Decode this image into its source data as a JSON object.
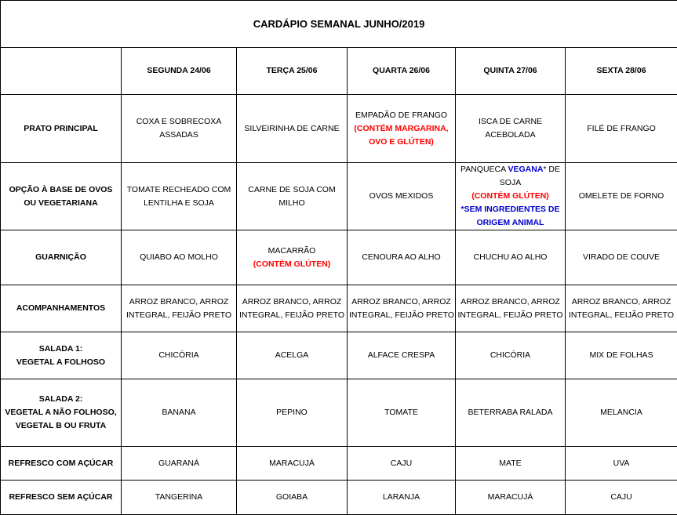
{
  "title": "CARDÁPIO SEMANAL JUNHO/2019",
  "days": [
    "SEGUNDA   24/06",
    "TERÇA 25/06",
    "QUARTA 26/06",
    "QUINTA 27/06",
    "SEXTA 28/06"
  ],
  "colors": {
    "allergen": "#ff0000",
    "vegan_note": "#0000cc"
  },
  "rows": [
    {
      "label": [
        "PRATO PRINCIPAL"
      ],
      "cells": [
        [
          [
            {
              "t": "COXA E SOBRECOXA"
            }
          ],
          [
            {
              "t": "ASSADAS"
            }
          ]
        ],
        [
          [
            {
              "t": "SILVEIRINHA DE CARNE"
            }
          ]
        ],
        [
          [
            {
              "t": "EMPADÃO DE FRANGO"
            }
          ],
          [
            {
              "t": "(CONTÉM MARGARINA,",
              "c": "red"
            }
          ],
          [
            {
              "t": "OVO E GLÚTEN)",
              "c": "red"
            }
          ]
        ],
        [
          [
            {
              "t": "ISCA DE CARNE"
            }
          ],
          [
            {
              "t": "ACEBOLADA"
            }
          ]
        ],
        [
          [
            {
              "t": "FILÉ DE FRANGO"
            }
          ]
        ]
      ]
    },
    {
      "label": [
        "OPÇÃO À BASE DE OVOS",
        "OU VEGETARIANA"
      ],
      "cells": [
        [
          [
            {
              "t": "TOMATE RECHEADO COM"
            }
          ],
          [
            {
              "t": "LENTILHA E SOJA"
            }
          ]
        ],
        [
          [
            {
              "t": "CARNE DE SOJA COM"
            }
          ],
          [
            {
              "t": "MILHO"
            }
          ]
        ],
        [
          [
            {
              "t": "OVOS MEXIDOS"
            }
          ]
        ],
        [
          [
            {
              "t": "PANQUECA "
            },
            {
              "t": "VEGANA",
              "c": "blue"
            },
            {
              "t": "* DE"
            }
          ],
          [
            {
              "t": "SOJA"
            }
          ],
          [
            {
              "t": "(CONTÉM GLÚTEN)",
              "c": "red"
            }
          ],
          [
            {
              "t": "*SEM INGREDIENTES DE",
              "c": "blue"
            }
          ],
          [
            {
              "t": "ORIGEM ANIMAL",
              "c": "blue"
            }
          ]
        ],
        [
          [
            {
              "t": "OMELETE DE FORNO"
            }
          ]
        ]
      ]
    },
    {
      "label": [
        "GUARNIÇÃO"
      ],
      "cells": [
        [
          [
            {
              "t": "QUIABO AO MOLHO"
            }
          ]
        ],
        [
          [
            {
              "t": "MACARRÃO"
            }
          ],
          [
            {
              "t": "(CONTÉM GLÚTEN)",
              "c": "red"
            }
          ]
        ],
        [
          [
            {
              "t": "CENOURA AO ALHO"
            }
          ]
        ],
        [
          [
            {
              "t": "CHUCHU AO ALHO"
            }
          ]
        ],
        [
          [
            {
              "t": "VIRADO DE COUVE"
            }
          ]
        ]
      ]
    },
    {
      "label": [
        "ACOMPANHAMENTOS"
      ],
      "cells": [
        [
          [
            {
              "t": "ARROZ BRANCO, ARROZ"
            }
          ],
          [
            {
              "t": "INTEGRAL, FEIJÃO PRETO"
            }
          ]
        ],
        [
          [
            {
              "t": "ARROZ BRANCO, ARROZ"
            }
          ],
          [
            {
              "t": "INTEGRAL, FEIJÃO PRETO"
            }
          ]
        ],
        [
          [
            {
              "t": "ARROZ BRANCO, ARROZ"
            }
          ],
          [
            {
              "t": "INTEGRAL, FEIJÃO PRETO"
            }
          ]
        ],
        [
          [
            {
              "t": "ARROZ BRANCO, ARROZ"
            }
          ],
          [
            {
              "t": "INTEGRAL, FEIJÃO PRETO"
            }
          ]
        ],
        [
          [
            {
              "t": "ARROZ BRANCO, ARROZ"
            }
          ],
          [
            {
              "t": "INTEGRAL, FEIJÃO PRETO"
            }
          ]
        ]
      ]
    },
    {
      "label": [
        "SALADA 1:",
        "VEGETAL A FOLHOSO"
      ],
      "cells": [
        [
          [
            {
              "t": "CHICÓRIA"
            }
          ]
        ],
        [
          [
            {
              "t": "ACELGA"
            }
          ]
        ],
        [
          [
            {
              "t": "ALFACE CRESPA"
            }
          ]
        ],
        [
          [
            {
              "t": "CHICÓRIA"
            }
          ]
        ],
        [
          [
            {
              "t": "MIX DE FOLHAS"
            }
          ]
        ]
      ]
    },
    {
      "label": [
        "SALADA 2:",
        "VEGETAL A NÃO FOLHOSO,",
        "VEGETAL B OU FRUTA"
      ],
      "cells": [
        [
          [
            {
              "t": "BANANA"
            }
          ]
        ],
        [
          [
            {
              "t": "PEPINO"
            }
          ]
        ],
        [
          [
            {
              "t": "TOMATE"
            }
          ]
        ],
        [
          [
            {
              "t": "BETERRABA RALADA"
            }
          ]
        ],
        [
          [
            {
              "t": "MELANCIA"
            }
          ]
        ]
      ]
    },
    {
      "label": [
        "REFRESCO COM AÇÚCAR"
      ],
      "cells": [
        [
          [
            {
              "t": "GUARANÁ"
            }
          ]
        ],
        [
          [
            {
              "t": "MARACUJÁ"
            }
          ]
        ],
        [
          [
            {
              "t": "CAJU"
            }
          ]
        ],
        [
          [
            {
              "t": "MATE"
            }
          ]
        ],
        [
          [
            {
              "t": "UVA"
            }
          ]
        ]
      ]
    },
    {
      "label": [
        "REFRESCO SEM AÇÚCAR"
      ],
      "cells": [
        [
          [
            {
              "t": "TANGERINA"
            }
          ]
        ],
        [
          [
            {
              "t": "GOIABA"
            }
          ]
        ],
        [
          [
            {
              "t": "LARANJA"
            }
          ]
        ],
        [
          [
            {
              "t": "MARACUJÁ"
            }
          ]
        ],
        [
          [
            {
              "t": "CAJU"
            }
          ]
        ]
      ]
    }
  ]
}
